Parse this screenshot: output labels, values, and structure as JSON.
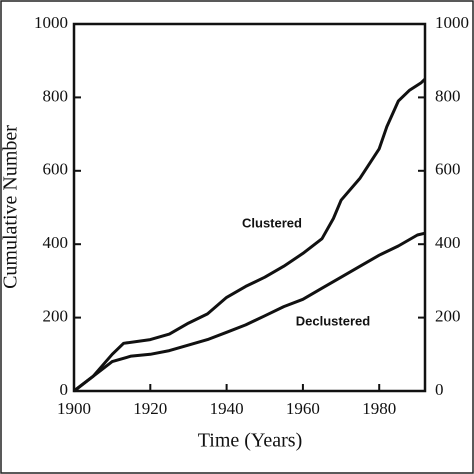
{
  "chart_data": {
    "type": "line",
    "xlabel": "Time (Years)",
    "ylabel": "Cumulative Number",
    "xlim": [
      1900,
      1992
    ],
    "xticks": [
      1900,
      1920,
      1940,
      1960,
      1980
    ],
    "ylim": [
      0,
      1000
    ],
    "yticks": [
      0,
      200,
      400,
      600,
      800,
      1000
    ],
    "y2lim": [
      0,
      1000
    ],
    "y2ticks": [
      0,
      200,
      400,
      600,
      800,
      1000
    ],
    "series": [
      {
        "name": "Clustered",
        "color": "#111111",
        "x": [
          1900,
          1905,
          1910,
          1913,
          1920,
          1925,
          1930,
          1935,
          1940,
          1945,
          1950,
          1955,
          1960,
          1965,
          1968,
          1970,
          1975,
          1980,
          1982,
          1985,
          1988,
          1991,
          1992
        ],
        "values": [
          0,
          40,
          100,
          130,
          140,
          155,
          185,
          210,
          255,
          285,
          310,
          340,
          375,
          415,
          470,
          520,
          580,
          660,
          720,
          790,
          820,
          840,
          850
        ]
      },
      {
        "name": "Declustered",
        "color": "#111111",
        "x": [
          1900,
          1905,
          1910,
          1915,
          1920,
          1925,
          1930,
          1935,
          1940,
          1945,
          1950,
          1955,
          1960,
          1965,
          1970,
          1975,
          1980,
          1985,
          1990,
          1992
        ],
        "values": [
          0,
          40,
          80,
          95,
          100,
          110,
          125,
          140,
          160,
          180,
          205,
          230,
          250,
          280,
          310,
          340,
          370,
          395,
          425,
          430
        ]
      }
    ]
  }
}
